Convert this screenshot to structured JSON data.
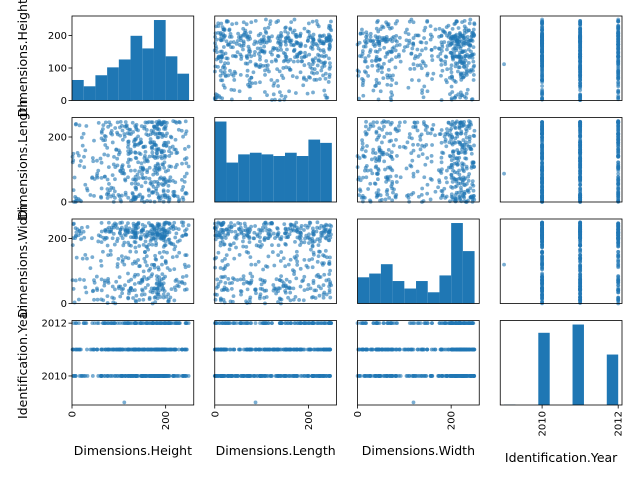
{
  "chart_data": {
    "type": "scatter_matrix",
    "color": "#1f77b4",
    "variables": [
      "Dimensions.Height",
      "Dimensions.Length",
      "Dimensions.Width",
      "Identification.Year"
    ],
    "ranges": {
      "Dimensions.Height": [
        0,
        260
      ],
      "Dimensions.Length": [
        0,
        260
      ],
      "Dimensions.Width": [
        0,
        260
      ],
      "Identification.Year": [
        2008.9,
        2012.1
      ]
    },
    "ticks": {
      "Dimensions.Height": [
        0,
        100,
        200
      ],
      "Dimensions.Length": [
        0,
        100,
        200
      ],
      "Dimensions.Width": [
        0,
        100,
        200
      ],
      "Identification.Year": [
        2010,
        2012
      ]
    },
    "column_tick_labels": [
      [
        "0",
        "200"
      ],
      [
        "0",
        "200"
      ],
      [
        "0",
        "200"
      ],
      [
        "2010",
        "2012"
      ]
    ],
    "row_tick_labels": [
      [
        "0",
        "100",
        "200"
      ],
      [
        "0",
        "200"
      ],
      [
        "0",
        "200"
      ],
      [
        "2010",
        "2012"
      ]
    ],
    "histograms": [
      {
        "variable": "Dimensions.Height",
        "bin_edges": [
          0,
          25,
          50,
          75,
          100,
          125,
          150,
          175,
          200,
          225,
          250
        ],
        "counts": [
          65,
          45,
          80,
          105,
          130,
          205,
          165,
          255,
          140,
          85
        ]
      },
      {
        "variable": "Dimensions.Length",
        "bin_edges": [
          0,
          25,
          50,
          75,
          100,
          125,
          150,
          175,
          200,
          225,
          250
        ],
        "counts": [
          245,
          120,
          145,
          150,
          145,
          140,
          150,
          140,
          190,
          180
        ]
      },
      {
        "variable": "Dimensions.Width",
        "bin_edges": [
          0,
          25,
          50,
          75,
          100,
          125,
          150,
          175,
          200,
          225,
          250
        ],
        "counts": [
          70,
          80,
          105,
          60,
          40,
          60,
          30,
          75,
          215,
          140
        ]
      },
      {
        "variable": "Identification.Year",
        "bin_edges": [
          2009,
          2009.3,
          2009.6,
          2009.9,
          2010.2,
          2010.5,
          2010.8,
          2011.1,
          2011.4,
          2011.7,
          2012
        ],
        "counts": [
          1,
          0,
          0,
          166,
          0,
          0,
          185,
          0,
          0,
          116
        ]
      }
    ],
    "year_values": [
      2009,
      2010,
      2011,
      2012
    ],
    "year_frequency": [
      1,
      166,
      185,
      116
    ],
    "points_per_scatter": 470
  }
}
